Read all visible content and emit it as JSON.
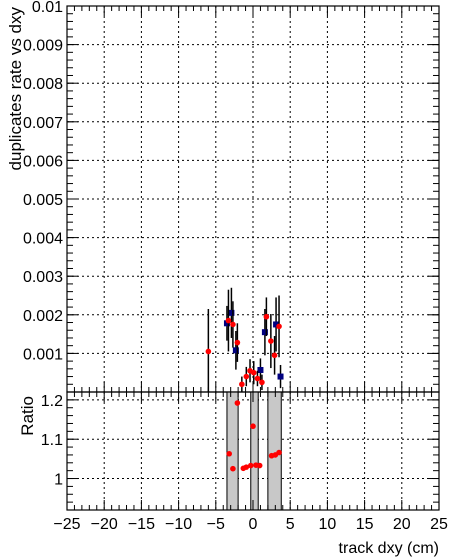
{
  "chart_data": [
    {
      "type": "scatter",
      "panel": "main",
      "title": "",
      "xlabel": "",
      "ylabel": "duplicates rate vs dxy",
      "xlim": [
        -25,
        25
      ],
      "ylim": [
        0,
        0.01
      ],
      "xticks": [
        -25,
        -20,
        -15,
        -10,
        -5,
        0,
        5,
        10,
        15,
        20,
        25
      ],
      "yticks": [
        {
          "v": 0.001,
          "label": "0.001"
        },
        {
          "v": 0.002,
          "label": "0.002"
        },
        {
          "v": 0.003,
          "label": "0.003"
        },
        {
          "v": 0.004,
          "label": "0.004"
        },
        {
          "v": 0.005,
          "label": "0.005"
        },
        {
          "v": 0.006,
          "label": "0.006"
        },
        {
          "v": 0.007,
          "label": "0.007"
        },
        {
          "v": 0.008,
          "label": "0.008"
        },
        {
          "v": 0.009,
          "label": "0.009"
        },
        {
          "v": 0.01,
          "label": "0.01"
        }
      ],
      "grid": true,
      "series": [
        {
          "color": "#000080",
          "marker": "square",
          "points": [
            {
              "x": -3.5,
              "y": 0.00178,
              "err": 0.00045
            },
            {
              "x": -2.9,
              "y": 0.00205,
              "err": 0.00065
            },
            {
              "x": -2.3,
              "y": 0.00108,
              "err": 0.0005
            },
            {
              "x": 1.0,
              "y": 0.00057,
              "err": 0.0003
            },
            {
              "x": 1.6,
              "y": 0.00155,
              "err": 0.0006
            },
            {
              "x": 3.1,
              "y": 0.00175,
              "err": 0.0007
            },
            {
              "x": 3.7,
              "y": 0.0004,
              "err": 0.0003
            }
          ]
        },
        {
          "color": "#ff0000",
          "marker": "circle",
          "points": [
            {
              "x": -6.0,
              "y": 0.00105,
              "err": 0.0011
            },
            {
              "x": -3.3,
              "y": 0.00185,
              "err": 0.0008
            },
            {
              "x": -2.7,
              "y": 0.00175,
              "err": 0.0006
            },
            {
              "x": -2.1,
              "y": 0.00128,
              "err": 0.0005
            },
            {
              "x": -1.5,
              "y": 0.0002,
              "err": 0.0002
            },
            {
              "x": -0.9,
              "y": 0.0004,
              "err": 0.00025
            },
            {
              "x": -0.4,
              "y": 0.00055,
              "err": 0.0003
            },
            {
              "x": 0.1,
              "y": 0.0005,
              "err": 0.0003
            },
            {
              "x": 0.6,
              "y": 0.00035,
              "err": 0.0002
            },
            {
              "x": 1.2,
              "y": 0.00025,
              "err": 0.0002
            },
            {
              "x": 1.8,
              "y": 0.00195,
              "err": 0.0005
            },
            {
              "x": 2.4,
              "y": 0.00132,
              "err": 0.0007
            },
            {
              "x": 2.9,
              "y": 0.00095,
              "err": 0.0005
            },
            {
              "x": 3.5,
              "y": 0.0017,
              "err": 0.0008
            }
          ]
        }
      ]
    },
    {
      "type": "scatter",
      "panel": "ratio",
      "title": "",
      "xlabel": "track dxy (cm)",
      "ylabel": "Ratio",
      "xlim": [
        -25,
        25
      ],
      "ylim": [
        0.92,
        1.22
      ],
      "xticks": [
        -25,
        -20,
        -15,
        -10,
        -5,
        0,
        5,
        10,
        15,
        20,
        25
      ],
      "yticks": [
        {
          "v": 1.0,
          "label": "1"
        },
        {
          "v": 1.1,
          "label": "1.1"
        },
        {
          "v": 1.2,
          "label": "1.2"
        }
      ],
      "grid": true,
      "bands": [
        {
          "x0": -3.5,
          "x1": -2.0
        },
        {
          "x0": -0.3,
          "x1": 0.7
        },
        {
          "x0": 2.0,
          "x1": 3.8
        }
      ],
      "series": [
        {
          "color": "#ff0000",
          "marker": "circle",
          "points": [
            {
              "x": -3.2,
              "y": 1.063
            },
            {
              "x": -2.7,
              "y": 1.025
            },
            {
              "x": -2.1,
              "y": 1.192
            },
            {
              "x": -1.3,
              "y": 1.026
            },
            {
              "x": -0.9,
              "y": 1.029
            },
            {
              "x": -0.3,
              "y": 1.033
            },
            {
              "x": 0.0,
              "y": 1.133
            },
            {
              "x": 0.4,
              "y": 1.034
            },
            {
              "x": 0.9,
              "y": 1.033
            },
            {
              "x": 2.5,
              "y": 1.058
            },
            {
              "x": 3.0,
              "y": 1.06
            },
            {
              "x": 3.5,
              "y": 1.066
            }
          ]
        }
      ]
    }
  ]
}
